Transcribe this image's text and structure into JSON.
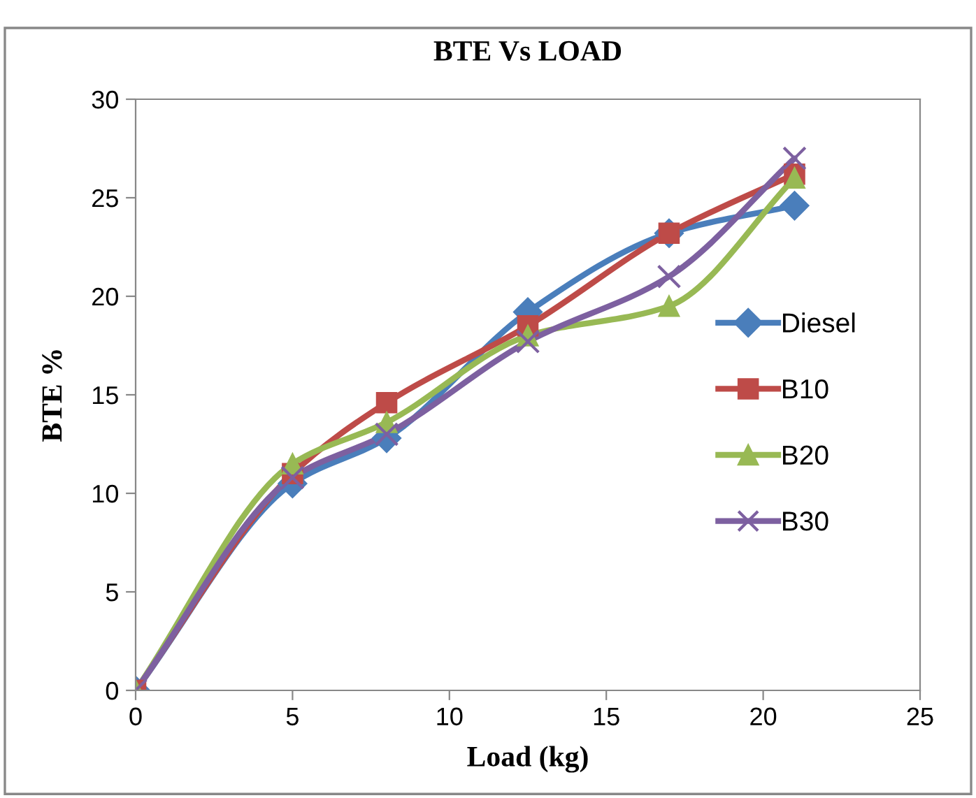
{
  "chart_data": {
    "type": "line",
    "title": "BTE Vs LOAD",
    "xlabel": "Load (kg)",
    "ylabel": "BTE %",
    "x": [
      0,
      5,
      8,
      12.5,
      17,
      21
    ],
    "series": [
      {
        "name": "Diesel",
        "color": "#4a7ebb",
        "marker": "diamond",
        "values": [
          0,
          10.5,
          12.8,
          19.2,
          23.2,
          24.6
        ]
      },
      {
        "name": "B10",
        "color": "#be4b48",
        "marker": "square",
        "values": [
          0,
          11,
          14.6,
          18.5,
          23.2,
          26.2
        ]
      },
      {
        "name": "B20",
        "color": "#98b954",
        "marker": "triangle",
        "values": [
          0,
          11.5,
          13.6,
          18,
          19.5,
          26
        ]
      },
      {
        "name": "B30",
        "color": "#7d60a0",
        "marker": "cross",
        "values": [
          0,
          10.8,
          13,
          17.7,
          21,
          27
        ]
      }
    ],
    "xlim": [
      0,
      25
    ],
    "xticks": [
      0,
      5,
      10,
      15,
      20,
      25
    ],
    "ylim": [
      0,
      30
    ],
    "yticks": [
      0,
      5,
      10,
      15,
      20,
      25,
      30
    ],
    "grid": false,
    "legend": "right",
    "line_style": "solid"
  }
}
